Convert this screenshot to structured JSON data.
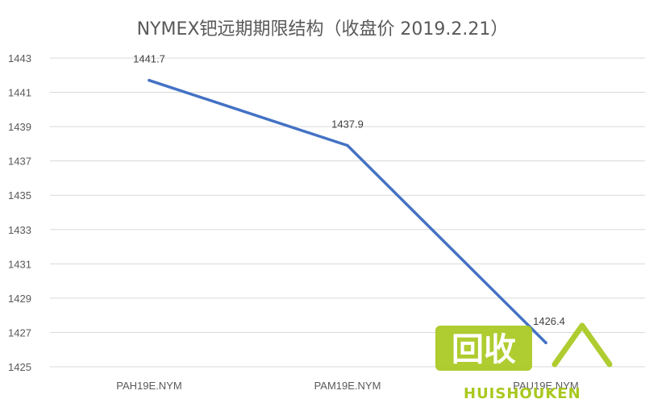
{
  "chart_data": {
    "type": "line",
    "title": "NYMEX钯远期期限结构（收盘价 2019.2.21）",
    "xlabel": "",
    "ylabel": "",
    "categories": [
      "PAH19E.NYM",
      "PAM19E.NYM",
      "PAU19E.NYM"
    ],
    "series": [
      {
        "values": [
          1441.7,
          1437.9,
          1426.4
        ],
        "color": "#4472C4"
      }
    ],
    "data_labels": [
      "1441.7",
      "1437.9",
      "1426.4"
    ],
    "yticks": [
      1425,
      1427,
      1429,
      1431,
      1433,
      1435,
      1437,
      1439,
      1441,
      1443
    ],
    "ylim": [
      1425,
      1443
    ],
    "grid": true,
    "legend": "none"
  },
  "watermark": {
    "logo_text": "回收",
    "brand_text": "HUISHOUKEN",
    "color": "#A8C81E"
  }
}
